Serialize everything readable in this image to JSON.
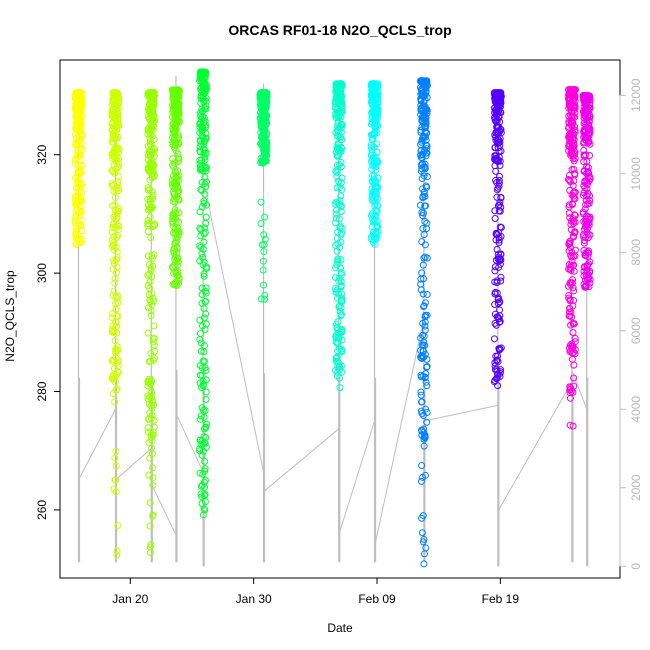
{
  "chart_data": {
    "type": "scatter",
    "title": "ORCAS RF01-18 N2O_QCLS_trop",
    "xlabel": "Date",
    "ylabel": "N2O_QCLS_trop",
    "x_tick_labels": [
      "Jan 20",
      "Jan 30",
      "Feb 09",
      "Feb 19"
    ],
    "x_ticks": [
      20,
      30,
      40,
      50
    ],
    "xlim": [
      14.3,
      59.7
    ],
    "y_ticks": [
      260,
      280,
      300,
      320
    ],
    "ylim": [
      248.5,
      336.0
    ],
    "y2_ticks": [
      0,
      2000,
      4000,
      6000,
      8000,
      10000,
      12000
    ],
    "y2_tick_labels": [
      "0",
      "2000",
      "4000",
      "6000",
      "8000",
      "10000",
      "12000"
    ],
    "y2lim": [
      -300,
      12900
    ],
    "grid": false,
    "legend": "none",
    "secondary_series_color": "#bebebe",
    "series": [
      {
        "color": "#ffff00",
        "day": 15.8,
        "core": [
          304.5,
          330.5
        ],
        "tail_min": 304.5,
        "dense": 0.65
      },
      {
        "color": "#ccff00",
        "day": 18.8,
        "core": [
          281.5,
          330.5
        ],
        "tail_min": 251.0,
        "dense": 0.45
      },
      {
        "color": "#99ff00",
        "day": 21.7,
        "core": [
          270.5,
          330.5
        ],
        "tail_min": 252.5,
        "dense": 0.55
      },
      {
        "color": "#66ff00",
        "day": 23.7,
        "core": [
          297.5,
          331.0
        ],
        "tail_min": 297.5,
        "dense": 0.6
      },
      {
        "color": "#00ff33",
        "day": 25.9,
        "core": [
          266.0,
          334.0
        ],
        "tail_min": 258.5,
        "dense": 0.6
      },
      {
        "color": "#00ff66",
        "day": 30.8,
        "core": [
          318.5,
          330.5
        ],
        "tail_min": 294.0,
        "dense": 0.5
      },
      {
        "color": "#00ffcc",
        "day": 36.9,
        "core": [
          280.5,
          332.0
        ],
        "tail_min": 280.5,
        "dense": 0.6
      },
      {
        "color": "#00ffff",
        "day": 39.8,
        "core": [
          304.5,
          332.0
        ],
        "tail_min": 304.5,
        "dense": 0.6
      },
      {
        "color": "#0080ff",
        "day": 43.8,
        "core": [
          272.0,
          332.5
        ],
        "tail_min": 250.5,
        "dense": 0.6
      },
      {
        "color": "#5500ff",
        "day": 49.8,
        "core": [
          280.5,
          330.5
        ],
        "tail_min": 280.5,
        "dense": 0.55
      },
      {
        "color": "#ff00dd",
        "day": 55.8,
        "core": [
          286.0,
          331.0
        ],
        "tail_min": 271.5,
        "dense": 0.5
      },
      {
        "color": "#ee00ee",
        "day": 57.0,
        "core": [
          297.5,
          330.0
        ],
        "tail_min": 297.5,
        "dense": 0.55
      }
    ],
    "secondary_path": [
      {
        "day": 15.8,
        "alt": 2200
      },
      {
        "day": 18.8,
        "alt": 4000
      },
      {
        "day": 18.8,
        "alt": 2200
      },
      {
        "day": 21.7,
        "alt": 3000
      },
      {
        "day": 21.7,
        "alt": 2100
      },
      {
        "day": 23.7,
        "alt": 800
      },
      {
        "day": 23.7,
        "alt": 3900
      },
      {
        "day": 25.9,
        "alt": 2400
      },
      {
        "day": 25.9,
        "alt": 9900
      },
      {
        "day": 30.8,
        "alt": 2400
      },
      {
        "day": 30.8,
        "alt": 1900
      },
      {
        "day": 36.9,
        "alt": 3500
      },
      {
        "day": 36.9,
        "alt": 800
      },
      {
        "day": 39.8,
        "alt": 3700
      },
      {
        "day": 39.8,
        "alt": 500
      },
      {
        "day": 43.8,
        "alt": 6300
      },
      {
        "day": 43.8,
        "alt": 3700
      },
      {
        "day": 49.8,
        "alt": 4100
      },
      {
        "day": 49.8,
        "alt": 1400
      },
      {
        "day": 55.8,
        "alt": 4700
      },
      {
        "day": 55.8,
        "alt": 5000
      },
      {
        "day": 57.0,
        "alt": 4000
      }
    ],
    "secondary_drop_lines": [
      {
        "day": 15.8,
        "top": 12000,
        "bottom": 100
      },
      {
        "day": 18.8,
        "top": 12000,
        "bottom": 100
      },
      {
        "day": 21.7,
        "top": 12100,
        "bottom": 100
      },
      {
        "day": 23.7,
        "top": 12500,
        "bottom": 100
      },
      {
        "day": 25.9,
        "top": 12000,
        "bottom": 0
      },
      {
        "day": 30.8,
        "top": 12300,
        "bottom": 100
      },
      {
        "day": 36.9,
        "top": 12000,
        "bottom": 100
      },
      {
        "day": 39.8,
        "top": 12000,
        "bottom": 100
      },
      {
        "day": 43.8,
        "top": 12000,
        "bottom": 100
      },
      {
        "day": 49.8,
        "top": 12100,
        "bottom": 0
      },
      {
        "day": 55.8,
        "top": 12100,
        "bottom": 100
      },
      {
        "day": 57.0,
        "top": 12000,
        "bottom": 0
      }
    ]
  }
}
